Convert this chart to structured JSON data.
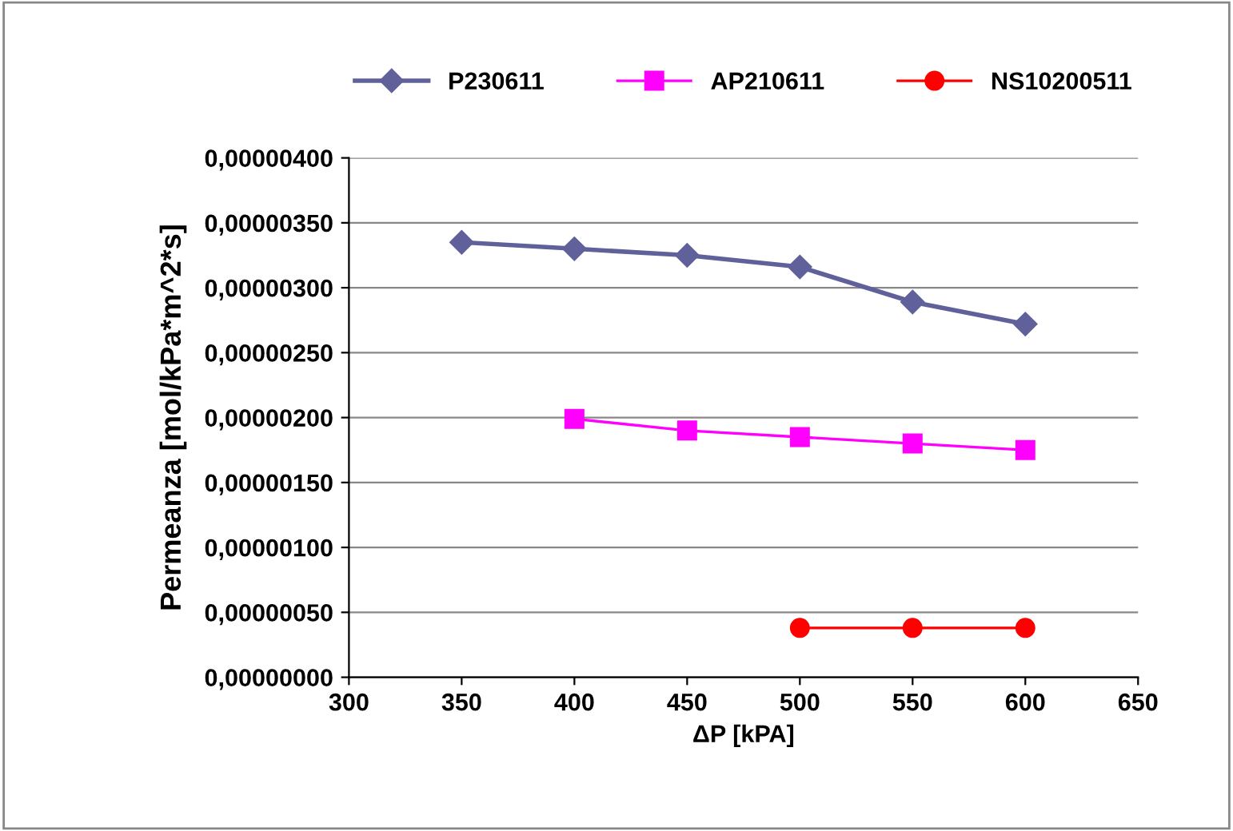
{
  "chart_data": {
    "type": "line",
    "xlabel": "ΔP [kPA]",
    "ylabel": "Permeanza [mol/kPa*m^2*s]",
    "xlim": [
      300,
      650
    ],
    "xticks": [
      300,
      350,
      400,
      450,
      500,
      550,
      600,
      650
    ],
    "ylim": [
      0,
      4e-06
    ],
    "yticks": [
      {
        "value": 0,
        "label": "0,00000000"
      },
      {
        "value": 5e-07,
        "label": "0,00000050"
      },
      {
        "value": 1e-06,
        "label": "0,00000100"
      },
      {
        "value": 1.5e-06,
        "label": "0,00000150"
      },
      {
        "value": 2e-06,
        "label": "0,00000200"
      },
      {
        "value": 2.5e-06,
        "label": "0,00000250"
      },
      {
        "value": 3e-06,
        "label": "0,00000300"
      },
      {
        "value": 3.5e-06,
        "label": "0,00000350"
      },
      {
        "value": 4e-06,
        "label": "0,00000400"
      }
    ],
    "grid": "y",
    "legend": "top",
    "series": [
      {
        "name": "P230611",
        "color": "#60609a",
        "marker": "diamond",
        "x": [
          350,
          400,
          450,
          500,
          550,
          600
        ],
        "values": [
          3.35e-06,
          3.3e-06,
          3.25e-06,
          3.16e-06,
          2.89e-06,
          2.72e-06
        ]
      },
      {
        "name": "AP210611",
        "color": "#ff00ff",
        "marker": "square",
        "x": [
          400,
          450,
          500,
          550,
          600
        ],
        "values": [
          1.99e-06,
          1.9e-06,
          1.85e-06,
          1.8e-06,
          1.75e-06
        ]
      },
      {
        "name": "NS10200511",
        "color": "#ff0000",
        "marker": "circle",
        "x": [
          500,
          550,
          600
        ],
        "values": [
          3.8e-07,
          3.8e-07,
          3.8e-07
        ]
      }
    ]
  }
}
